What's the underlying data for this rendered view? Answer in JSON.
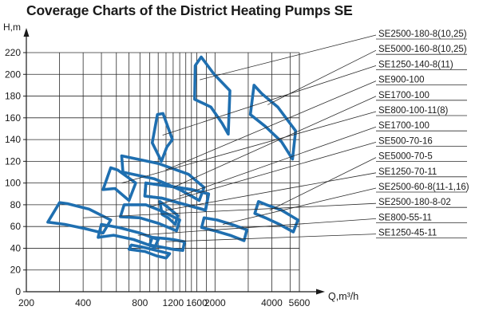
{
  "chart_data": {
    "type": "area",
    "title": "Coverage Charts of the District Heating Pumps SE",
    "ylabel": "H,m",
    "xlabel": "Q,m³/h",
    "x_scale": "log",
    "xlim": [
      200,
      5600
    ],
    "ylim": [
      0,
      220
    ],
    "x_tick_labels": [
      "200",
      "400",
      "800",
      "1200",
      "1600",
      "2000",
      "4000",
      "5600"
    ],
    "x_tick_values": [
      200,
      400,
      800,
      1200,
      1600,
      2000,
      4000,
      5600
    ],
    "y_ticks": [
      0,
      20,
      40,
      60,
      80,
      100,
      120,
      140,
      160,
      180,
      200,
      220
    ],
    "x_gridlines": [
      300,
      400,
      500,
      600,
      700,
      800,
      900,
      1000,
      1100,
      1200,
      1300,
      1400,
      1500,
      1600,
      1800,
      2000,
      3000,
      4000,
      5000
    ],
    "grid": true,
    "legend": "right",
    "line_color": "#1f6fb0",
    "series": [
      {
        "name": "SE2500-180-8(10,25)",
        "outline": [
          [
            1570,
            208
          ],
          [
            1690,
            216
          ],
          [
            1980,
            200
          ],
          [
            2400,
            185
          ],
          [
            2350,
            145
          ],
          [
            2180,
            155
          ],
          [
            1900,
            170
          ],
          [
            1560,
            177
          ]
        ],
        "anchor": [
          1660,
          195
        ]
      },
      {
        "name": "SE5000-160-8(10,25)",
        "outline": [
          [
            3220,
            190
          ],
          [
            3550,
            182
          ],
          [
            4300,
            170
          ],
          [
            5350,
            148
          ],
          [
            5150,
            122
          ],
          [
            4500,
            138
          ],
          [
            3700,
            152
          ],
          [
            3080,
            163
          ]
        ],
        "anchor": [
          3800,
          172
        ]
      },
      {
        "name": "SE1250-140-8(11)",
        "outline": [
          [
            990,
            163
          ],
          [
            1060,
            164
          ],
          [
            1190,
            140
          ],
          [
            1110,
            133
          ],
          [
            1040,
            120
          ],
          [
            930,
            137
          ]
        ],
        "anchor": [
          1055,
          144
        ]
      },
      {
        "name": "SE900-100",
        "outline": [
          [
            640,
            125
          ],
          [
            1000,
            118
          ],
          [
            1450,
            108
          ],
          [
            1750,
            96
          ],
          [
            1650,
            84
          ],
          [
            1300,
            94
          ],
          [
            950,
            104
          ],
          [
            650,
            110
          ]
        ],
        "anchor": [
          1100,
          112
        ]
      },
      {
        "name": "SE1700-100",
        "outline": [
          [
            860,
            100
          ],
          [
            1150,
            97
          ],
          [
            1500,
            94
          ],
          [
            1850,
            90
          ],
          [
            1780,
            75
          ],
          [
            1400,
            80
          ],
          [
            1050,
            86
          ],
          [
            850,
            88
          ]
        ],
        "anchor": [
          1200,
          96
        ]
      },
      {
        "name": "SE800-100-11(8)",
        "outline": [
          [
            560,
            114
          ],
          [
            610,
            112
          ],
          [
            760,
            100
          ],
          [
            700,
            84
          ],
          [
            590,
            95
          ],
          [
            510,
            94
          ]
        ],
        "anchor": [
          640,
          100
        ]
      },
      {
        "name": "SE1700-100",
        "outline": [
          [
            860,
            100
          ],
          [
            1150,
            97
          ],
          [
            1500,
            94
          ],
          [
            1850,
            90
          ],
          [
            1780,
            75
          ],
          [
            1400,
            80
          ],
          [
            1050,
            86
          ],
          [
            850,
            88
          ]
        ],
        "anchor": [
          1300,
          88
        ]
      },
      {
        "name": "SE500-70-16",
        "outline": [
          [
            660,
            80
          ],
          [
            860,
            80
          ],
          [
            1050,
            74
          ],
          [
            1300,
            66
          ],
          [
            1250,
            56
          ],
          [
            1000,
            63
          ],
          [
            800,
            68
          ],
          [
            630,
            69
          ]
        ],
        "anchor": [
          900,
          78
        ]
      },
      {
        "name": "SE5000-70-5",
        "outline": [
          [
            3400,
            83
          ],
          [
            3750,
            80
          ],
          [
            4500,
            75
          ],
          [
            5500,
            66
          ],
          [
            5200,
            55
          ],
          [
            4400,
            62
          ],
          [
            3700,
            68
          ],
          [
            3250,
            72
          ]
        ],
        "anchor": [
          3900,
          75
        ]
      },
      {
        "name": "SE1250-70-11",
        "outline": [
          [
            1020,
            83
          ],
          [
            1120,
            78
          ],
          [
            1270,
            70
          ],
          [
            1230,
            62
          ],
          [
            1130,
            68
          ],
          [
            1050,
            71
          ]
        ],
        "anchor": [
          1100,
          75
        ]
      },
      {
        "name": "SE2500-60-8(11-1,16)",
        "outline": [
          [
            1750,
            68
          ],
          [
            2050,
            66
          ],
          [
            2450,
            62
          ],
          [
            2950,
            57
          ],
          [
            2850,
            47
          ],
          [
            2400,
            52
          ],
          [
            2000,
            56
          ],
          [
            1700,
            59
          ]
        ],
        "anchor": [
          2200,
          62
        ]
      },
      {
        "name": "SE2500-180-8-02",
        "outline": [
          [
            300,
            82
          ],
          [
            330,
            81
          ],
          [
            430,
            76
          ],
          [
            560,
            66
          ],
          [
            510,
            54
          ],
          [
            410,
            58
          ],
          [
            320,
            62
          ],
          [
            260,
            64
          ]
        ],
        "anchor": [
          400,
          68
        ]
      },
      {
        "name": "SE800-55-11",
        "outline": [
          [
            500,
            62
          ],
          [
            620,
            59
          ],
          [
            800,
            54
          ],
          [
            1000,
            48
          ],
          [
            960,
            41
          ],
          [
            740,
            48
          ],
          [
            580,
            52
          ],
          [
            480,
            50
          ]
        ],
        "anchor": [
          780,
          52
        ]
      },
      {
        "name": "SE1250-45-11",
        "outline": [
          [
            930,
            50
          ],
          [
            1080,
            49
          ],
          [
            1200,
            48
          ],
          [
            1380,
            46
          ],
          [
            1350,
            38
          ],
          [
            1200,
            39
          ],
          [
            1050,
            41
          ],
          [
            900,
            43
          ]
        ],
        "anchor": [
          1100,
          46
        ]
      },
      {
        "name": "",
        "outline": [
          [
            720,
            43
          ],
          [
            830,
            41
          ],
          [
            980,
            38
          ],
          [
            1150,
            35
          ],
          [
            1100,
            31
          ],
          [
            980,
            33
          ],
          [
            850,
            37
          ],
          [
            700,
            39
          ]
        ],
        "anchor": [
          900,
          40
        ]
      }
    ]
  }
}
